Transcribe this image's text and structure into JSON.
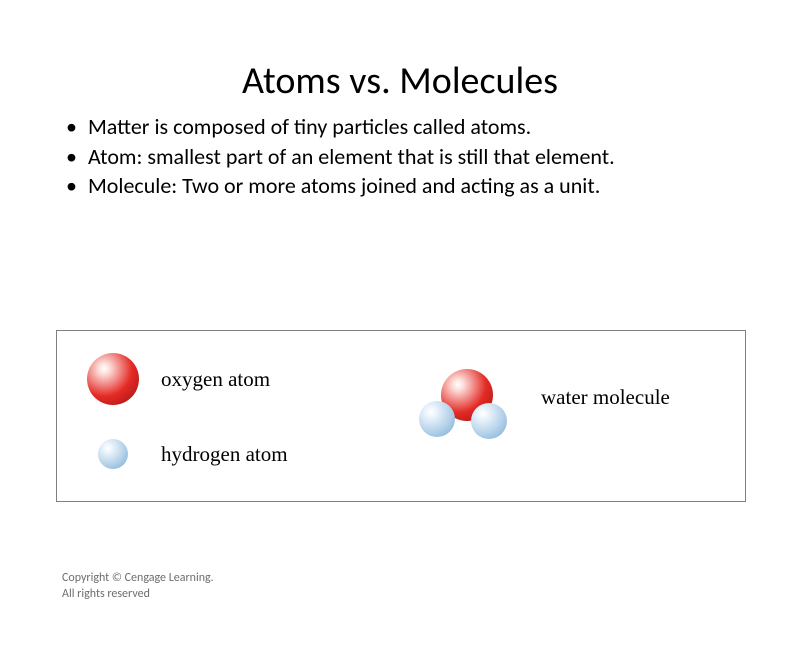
{
  "title": "Atoms vs. Molecules",
  "bullets": [
    "Matter is composed of tiny particles called atoms.",
    "Atom: smallest part of an element that is still that element.",
    "Molecule: Two or more atoms joined and acting as a unit."
  ],
  "diagram": {
    "border_color": "#7f7f7f",
    "oxygen": {
      "label": "oxygen atom",
      "diameter": 52,
      "color_light": "#fcdad6",
      "color_mid": "#e42b26",
      "color_dark": "#9a0f0f",
      "highlight": "#ffffff"
    },
    "hydrogen": {
      "label": "hydrogen atom",
      "diameter": 30,
      "color_light": "#f0f7fd",
      "color_mid": "#b7d3ea",
      "color_dark": "#7aaad2",
      "highlight": "#ffffff"
    },
    "water": {
      "label": "water molecule",
      "oxygen_diameter": 52,
      "hydrogen_diameter": 36
    }
  },
  "copyright": {
    "line1": "Copyright © Cengage Learning.",
    "line2": "All rights reserved"
  }
}
